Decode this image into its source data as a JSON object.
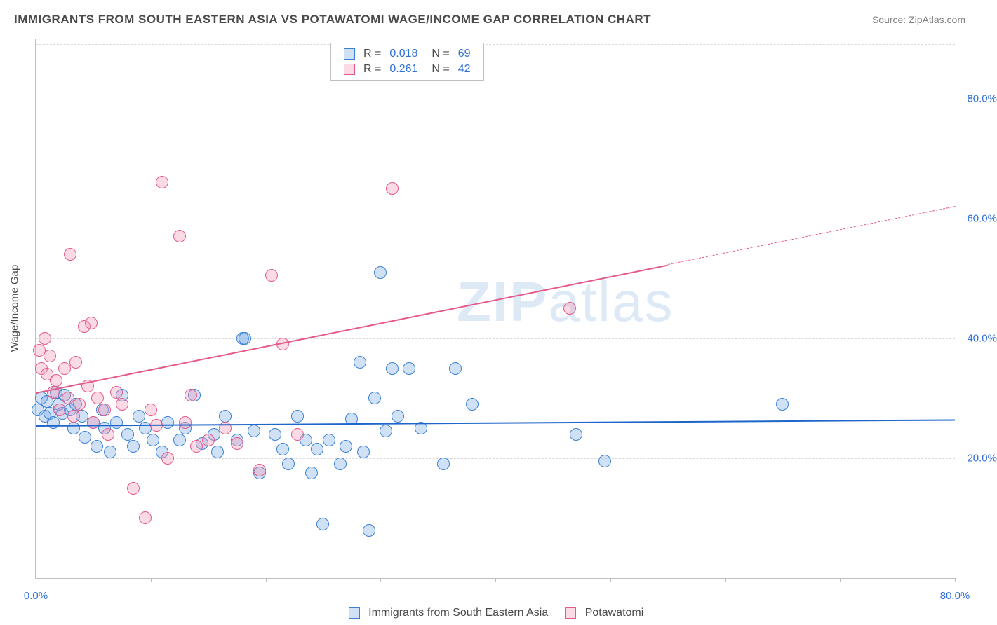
{
  "title": "IMMIGRANTS FROM SOUTH EASTERN ASIA VS POTAWATOMI WAGE/INCOME GAP CORRELATION CHART",
  "source": "Source: ZipAtlas.com",
  "y_axis_label": "Wage/Income Gap",
  "watermark": {
    "prefix": "ZIP",
    "suffix": "atlas"
  },
  "chart": {
    "type": "scatter",
    "xlim": [
      0,
      80
    ],
    "ylim": [
      0,
      90
    ],
    "x_ticks": [
      0,
      10,
      20,
      30,
      40,
      50,
      60,
      70,
      80
    ],
    "x_tick_labels": {
      "0": "0.0%",
      "80": "80.0%"
    },
    "y_gridlines": [
      20,
      40,
      60,
      80
    ],
    "y_tick_labels": {
      "20": "20.0%",
      "40": "40.0%",
      "60": "60.0%",
      "80": "80.0%"
    },
    "background_color": "#ffffff",
    "grid_color": "#d9d9d9",
    "axis_color": "#bfbfbf",
    "marker_radius": 9,
    "marker_border_width": 1.2,
    "marker_fill_opacity": 0.35,
    "series": [
      {
        "id": "sea",
        "label": "Immigrants from South Eastern Asia",
        "color": "#3b82d6",
        "fill": "rgba(120,170,230,0.35)",
        "r": "0.018",
        "n": "69",
        "trend": {
          "x1": 0,
          "y1": 25.5,
          "x2": 80,
          "y2": 26.5,
          "color": "#1e66c9",
          "width": 2
        },
        "points": [
          [
            0.2,
            28
          ],
          [
            0.5,
            30
          ],
          [
            0.8,
            27
          ],
          [
            1.0,
            29.5
          ],
          [
            1.2,
            27.5
          ],
          [
            1.5,
            26
          ],
          [
            1.8,
            31
          ],
          [
            2.0,
            29
          ],
          [
            2.3,
            27.5
          ],
          [
            2.5,
            30.5
          ],
          [
            3.0,
            28
          ],
          [
            3.3,
            25
          ],
          [
            3.5,
            29
          ],
          [
            4.0,
            27
          ],
          [
            4.3,
            23.5
          ],
          [
            5.0,
            26
          ],
          [
            5.3,
            22
          ],
          [
            5.8,
            28
          ],
          [
            6.0,
            25
          ],
          [
            6.5,
            21
          ],
          [
            7.0,
            26
          ],
          [
            7.5,
            30.5
          ],
          [
            8.0,
            24
          ],
          [
            8.5,
            22
          ],
          [
            9.0,
            27
          ],
          [
            9.5,
            25
          ],
          [
            10.2,
            23
          ],
          [
            11.0,
            21
          ],
          [
            11.5,
            26
          ],
          [
            12.5,
            23
          ],
          [
            13.0,
            25
          ],
          [
            13.8,
            30.5
          ],
          [
            14.5,
            22.5
          ],
          [
            15.5,
            24
          ],
          [
            15.8,
            21
          ],
          [
            16.5,
            27
          ],
          [
            17.5,
            23
          ],
          [
            18.0,
            40
          ],
          [
            18.2,
            40
          ],
          [
            19.0,
            24.5
          ],
          [
            19.5,
            17.5
          ],
          [
            20.8,
            24
          ],
          [
            21.5,
            21.5
          ],
          [
            22.0,
            19
          ],
          [
            22.8,
            27
          ],
          [
            23.5,
            23
          ],
          [
            24.0,
            17.5
          ],
          [
            24.5,
            21.5
          ],
          [
            25.0,
            9
          ],
          [
            25.5,
            23
          ],
          [
            26.5,
            19
          ],
          [
            27.0,
            22
          ],
          [
            27.5,
            26.5
          ],
          [
            28.2,
            36
          ],
          [
            28.5,
            21
          ],
          [
            29.0,
            8
          ],
          [
            29.5,
            30
          ],
          [
            30.0,
            51
          ],
          [
            30.5,
            24.5
          ],
          [
            31.0,
            35
          ],
          [
            31.5,
            27
          ],
          [
            32.5,
            35
          ],
          [
            33.5,
            25
          ],
          [
            35.5,
            19
          ],
          [
            36.5,
            35
          ],
          [
            38.0,
            29
          ],
          [
            47.0,
            24
          ],
          [
            49.5,
            19.5
          ],
          [
            65.0,
            29
          ]
        ]
      },
      {
        "id": "potawatomi",
        "label": "Potawatomi",
        "color": "#e55a8a",
        "fill": "rgba(240,150,180,0.35)",
        "r": "0.261",
        "n": "42",
        "trend": {
          "x1": 0,
          "y1": 31,
          "x2": 80,
          "y2": 62,
          "color": "#e55a8a",
          "width": 1.5,
          "dash_from_x": 55
        },
        "points": [
          [
            0.3,
            38
          ],
          [
            0.5,
            35
          ],
          [
            0.8,
            40
          ],
          [
            1.0,
            34
          ],
          [
            1.2,
            37
          ],
          [
            1.5,
            31
          ],
          [
            1.8,
            33
          ],
          [
            2.1,
            28
          ],
          [
            2.5,
            35
          ],
          [
            2.8,
            30
          ],
          [
            3.0,
            54
          ],
          [
            3.3,
            27
          ],
          [
            3.5,
            36
          ],
          [
            3.8,
            29
          ],
          [
            4.2,
            42
          ],
          [
            4.5,
            32
          ],
          [
            4.8,
            42.5
          ],
          [
            5.0,
            26
          ],
          [
            5.4,
            30
          ],
          [
            6.0,
            28
          ],
          [
            6.3,
            24
          ],
          [
            7.0,
            31
          ],
          [
            7.5,
            29
          ],
          [
            8.5,
            15
          ],
          [
            9.5,
            10
          ],
          [
            10.0,
            28
          ],
          [
            10.5,
            25.5
          ],
          [
            11.0,
            66
          ],
          [
            11.5,
            20
          ],
          [
            12.5,
            57
          ],
          [
            13.0,
            26
          ],
          [
            13.5,
            30.5
          ],
          [
            14.0,
            22
          ],
          [
            15.0,
            23
          ],
          [
            16.5,
            25
          ],
          [
            17.5,
            22.5
          ],
          [
            19.5,
            18
          ],
          [
            20.5,
            50.5
          ],
          [
            21.5,
            39
          ],
          [
            22.8,
            24
          ],
          [
            31.0,
            65
          ],
          [
            46.5,
            45
          ]
        ]
      }
    ]
  },
  "legend_top": {
    "r_label": "R =",
    "n_label": "N ="
  }
}
